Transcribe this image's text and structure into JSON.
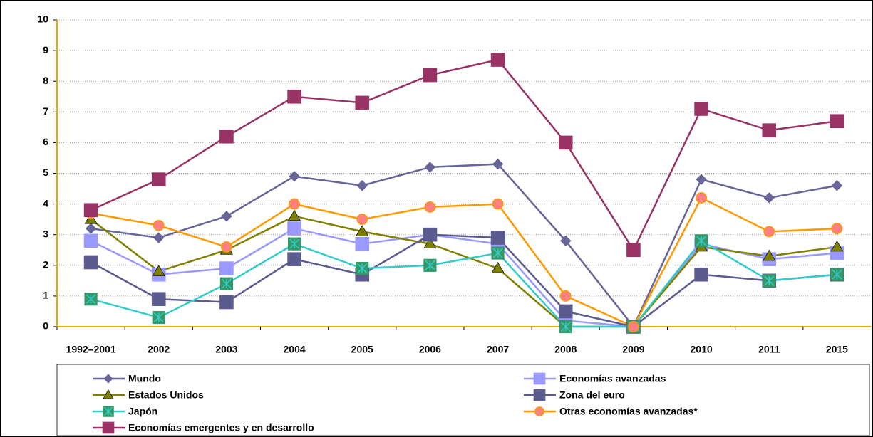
{
  "chart_data": {
    "type": "line",
    "categories": [
      "1992–2001",
      "2002",
      "2003",
      "2004",
      "2005",
      "2006",
      "2007",
      "2008",
      "2009",
      "2010",
      "2011",
      "2015"
    ],
    "ylim": [
      0,
      10
    ],
    "yticks": [
      0,
      1,
      2,
      3,
      4,
      5,
      6,
      7,
      8,
      9,
      10
    ],
    "grid": true,
    "legend": "bottom",
    "series": [
      {
        "name": "Mundo",
        "color": "#666699",
        "marker": "diamond",
        "marker_color": "#666699",
        "values": [
          3.2,
          2.9,
          3.6,
          4.9,
          4.6,
          5.2,
          5.3,
          2.8,
          0,
          4.8,
          4.2,
          4.6
        ]
      },
      {
        "name": "Economías avanzadas",
        "color": "#9999FF",
        "marker": "square",
        "marker_color": "#9999FF",
        "values": [
          2.8,
          1.7,
          1.9,
          3.2,
          2.7,
          3.0,
          2.7,
          0.2,
          0,
          2.7,
          2.2,
          2.4
        ]
      },
      {
        "name": "Estados Unidos",
        "color": "#808000",
        "marker": "triangle",
        "marker_color": "#808000",
        "values": [
          3.5,
          1.8,
          2.5,
          3.6,
          3.1,
          2.7,
          1.9,
          0,
          0,
          2.6,
          2.3,
          2.6
        ]
      },
      {
        "name": "Zona del euro",
        "color": "#5B5B8F",
        "marker": "square",
        "marker_color": "#5B5B8F",
        "values": [
          2.1,
          0.9,
          0.8,
          2.2,
          1.7,
          3.0,
          2.9,
          0.5,
          0,
          1.7,
          1.5,
          1.7
        ]
      },
      {
        "name": "Japón",
        "color": "#33CCCC",
        "marker": "xsquare",
        "marker_color": "#339966",
        "values": [
          0.9,
          0.3,
          1.4,
          2.7,
          1.9,
          2.0,
          2.4,
          0,
          0,
          2.8,
          1.5,
          1.7
        ]
      },
      {
        "name": "Otras economías avanzadas*",
        "color": "#FF9900",
        "marker": "circle",
        "marker_color": "#FF8080",
        "values": [
          3.7,
          3.3,
          2.6,
          4.0,
          3.5,
          3.9,
          4.0,
          1.0,
          0,
          4.2,
          3.1,
          3.2
        ]
      },
      {
        "name": "Economías emergentes y en desarrollo",
        "color": "#993366",
        "marker": "square",
        "marker_color": "#993366",
        "values": [
          3.8,
          4.8,
          6.2,
          7.5,
          7.3,
          8.2,
          8.7,
          6.0,
          2.5,
          7.1,
          6.4,
          6.7
        ]
      }
    ]
  }
}
